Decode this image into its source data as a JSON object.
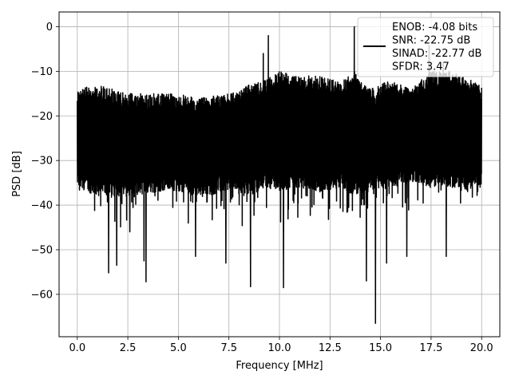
{
  "chart_data": {
    "type": "line",
    "title": "",
    "xlabel": "Frequency [MHz]",
    "ylabel": "PSD [dB]",
    "xlim": [
      -0.9,
      20.9
    ],
    "ylim": [
      -69.5,
      3.3
    ],
    "xticks": [
      0.0,
      2.5,
      5.0,
      7.5,
      10.0,
      12.5,
      15.0,
      17.5,
      20.0
    ],
    "xtick_labels": [
      "0.0",
      "2.5",
      "5.0",
      "7.5",
      "10.0",
      "12.5",
      "15.0",
      "17.5",
      "20.0"
    ],
    "yticks": [
      0,
      -10,
      -20,
      -30,
      -40,
      -50,
      -60
    ],
    "ytick_labels": [
      "0",
      "−10",
      "−20",
      "−30",
      "−40",
      "−50",
      "−60"
    ],
    "grid": true,
    "legend_position": "top-right",
    "series": [
      {
        "name": "ENOB: -4.08 bits\nSNR: -22.75 dB\nSINAD: -22.77 dB\nSFDR: 3.47",
        "color": "#000000",
        "x_range": [
          0.0,
          20.0
        ],
        "description": "dense noise-like power spectral density, mostly between -13 and -40 dB",
        "envelope": {
          "x": [
            0.0,
            1.0,
            2.5,
            4.0,
            5.0,
            6.0,
            7.5,
            8.5,
            9.3,
            10.0,
            11.0,
            12.0,
            13.0,
            13.7,
            14.5,
            15.5,
            16.5,
            17.5,
            18.5,
            19.5,
            20.0
          ],
          "upper": [
            -14,
            -13,
            -15,
            -15,
            -15,
            -16,
            -15,
            -13,
            -12,
            -10,
            -11,
            -11,
            -12,
            -10,
            -14,
            -12,
            -14,
            -10,
            -10,
            -12,
            -13
          ],
          "lower": [
            -36,
            -38,
            -38,
            -37,
            -37,
            -38,
            -37,
            -38,
            -36,
            -37,
            -36,
            -37,
            -36,
            -38,
            -37,
            -36,
            -35,
            -36,
            -36,
            -37,
            -36
          ]
        },
        "peaks": [
          {
            "x": 1.55,
            "y": -55.2
          },
          {
            "x": 1.95,
            "y": -53.5
          },
          {
            "x": 2.6,
            "y": -46.0
          },
          {
            "x": 3.3,
            "y": -52.5
          },
          {
            "x": 3.4,
            "y": -57.2
          },
          {
            "x": 5.85,
            "y": -51.5
          },
          {
            "x": 7.35,
            "y": -53.0
          },
          {
            "x": 8.57,
            "y": -58.3
          },
          {
            "x": 9.2,
            "y": -6.0
          },
          {
            "x": 9.45,
            "y": -2.0
          },
          {
            "x": 10.2,
            "y": -58.5
          },
          {
            "x": 13.7,
            "y": 0.0
          },
          {
            "x": 14.3,
            "y": -57.0
          },
          {
            "x": 14.75,
            "y": -66.5
          },
          {
            "x": 15.3,
            "y": -53.0
          },
          {
            "x": 16.3,
            "y": -51.5
          },
          {
            "x": 18.25,
            "y": -51.5
          },
          {
            "x": 17.4,
            "y": -4.2
          },
          {
            "x": 18.1,
            "y": -8.0
          }
        ]
      }
    ]
  }
}
